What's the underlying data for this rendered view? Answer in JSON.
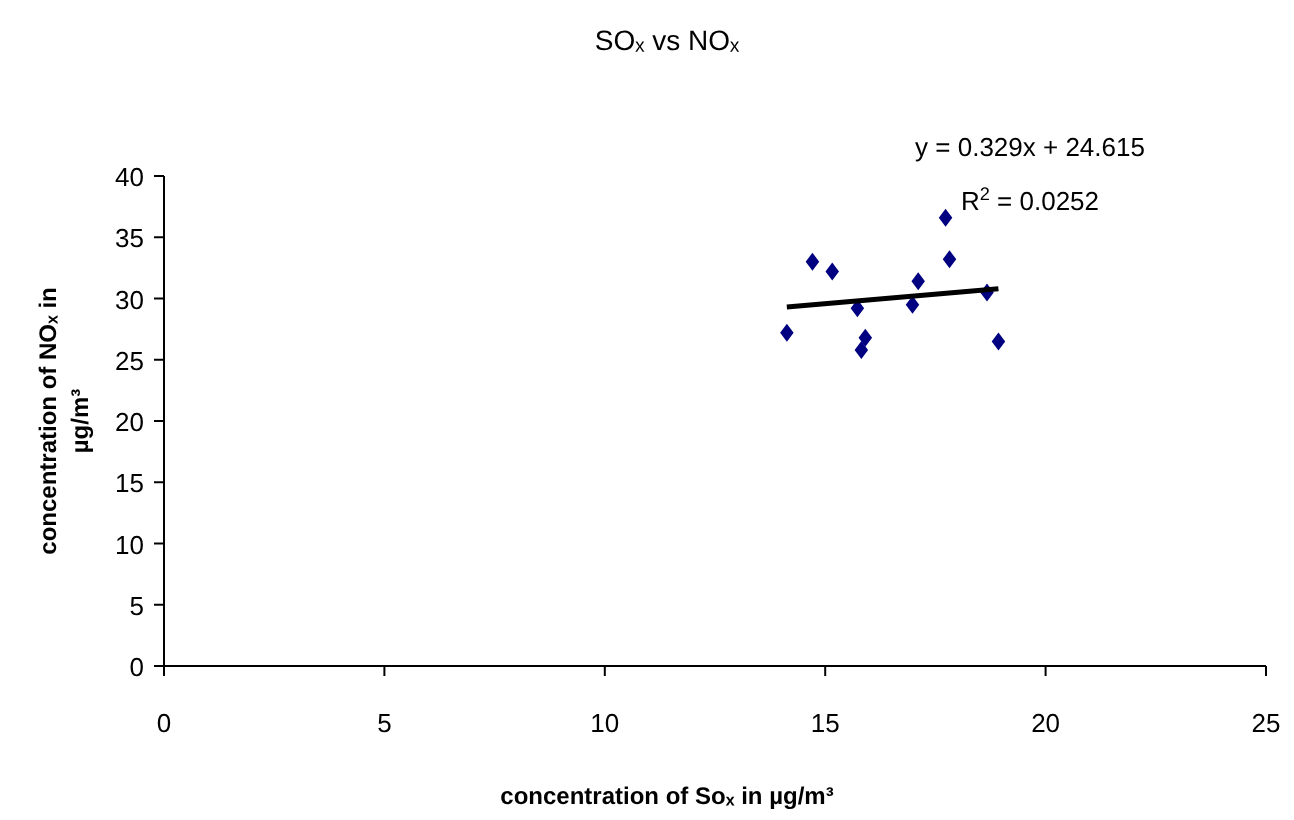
{
  "chart_data": {
    "type": "scatter",
    "title": "SOₓ vs NOₓ",
    "xlabel": "concentration of Soₓ in µg/m³",
    "ylabel": "concentration of  NOₓ in µg/m³",
    "annotations": [
      "y = 0.329x + 24.615",
      "R$^{2}$ = 0.0252"
    ],
    "xlim": [
      0,
      25
    ],
    "xticks": [
      0,
      5,
      10,
      15,
      20,
      25
    ],
    "ylim": [
      0,
      40
    ],
    "yticks": [
      0,
      5,
      10,
      15,
      20,
      25,
      30,
      35,
      40
    ],
    "grid": false,
    "marker": "diamond",
    "series": [
      {
        "color": "#000080",
        "x": [
          14.13,
          14.71,
          15.16,
          15.73,
          15.82,
          15.91,
          16.98,
          17.11,
          17.73,
          17.82,
          18.67,
          18.93
        ],
        "values": [
          27.2,
          33,
          32.2,
          29.2,
          25.8,
          26.8,
          29.5,
          31.4,
          36.6,
          33.2,
          30.5,
          26.5
        ]
      },
      {
        "type": "line",
        "color": "#000000",
        "marker": "none",
        "x": [
          14.13,
          18.93
        ],
        "values": [
          29.3,
          30.8
        ]
      }
    ]
  }
}
